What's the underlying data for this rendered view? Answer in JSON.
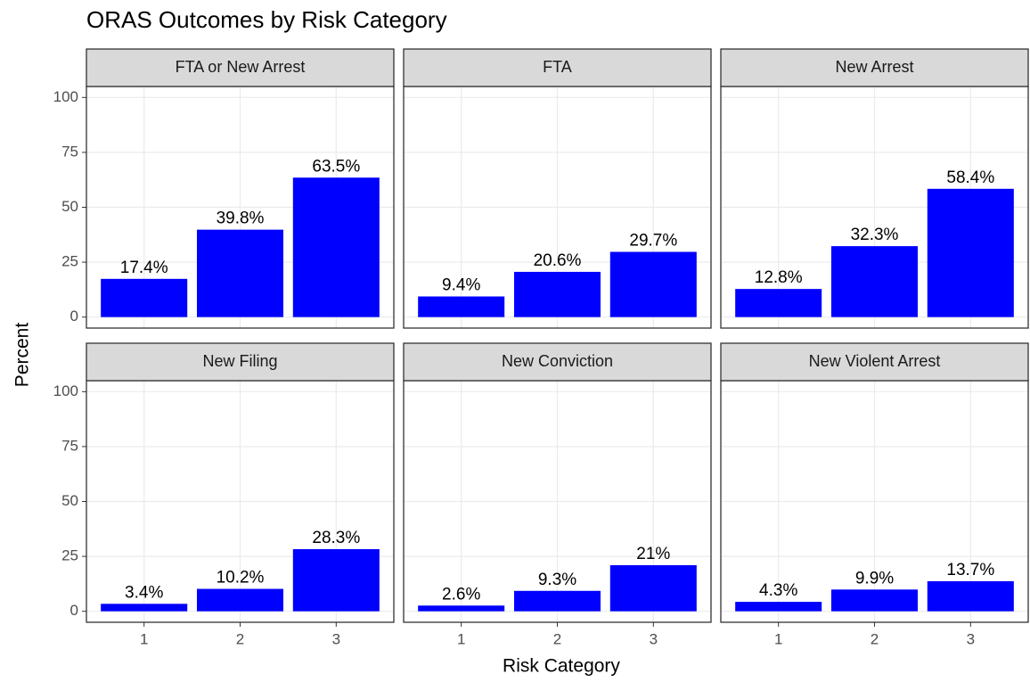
{
  "chart_data": {
    "type": "bar",
    "title": "ORAS Outcomes by Risk Category",
    "x_label": "Risk Category",
    "y_label": "Percent",
    "categories": [
      "1",
      "2",
      "3"
    ],
    "ylim": [
      -5,
      105
    ],
    "yticks": [
      0,
      25,
      50,
      75,
      100
    ],
    "grid": true,
    "color": "#0000ff",
    "facets": [
      {
        "title": "FTA or New Arrest",
        "values": [
          17.4,
          39.8,
          63.5
        ],
        "value_labels": [
          "17.4%",
          "39.8%",
          "63.5%"
        ]
      },
      {
        "title": "FTA",
        "values": [
          9.4,
          20.6,
          29.7
        ],
        "value_labels": [
          "9.4%",
          "20.6%",
          "29.7%"
        ]
      },
      {
        "title": "New Arrest",
        "values": [
          12.8,
          32.3,
          58.4
        ],
        "value_labels": [
          "12.8%",
          "32.3%",
          "58.4%"
        ]
      },
      {
        "title": "New Filing",
        "values": [
          3.4,
          10.2,
          28.3
        ],
        "value_labels": [
          "3.4%",
          "10.2%",
          "28.3%"
        ]
      },
      {
        "title": "New Conviction",
        "values": [
          2.6,
          9.3,
          21
        ],
        "value_labels": [
          "2.6%",
          "9.3%",
          "21%"
        ]
      },
      {
        "title": "New Violent Arrest",
        "values": [
          4.3,
          9.9,
          13.7
        ],
        "value_labels": [
          "4.3%",
          "9.9%",
          "13.7%"
        ]
      }
    ]
  }
}
